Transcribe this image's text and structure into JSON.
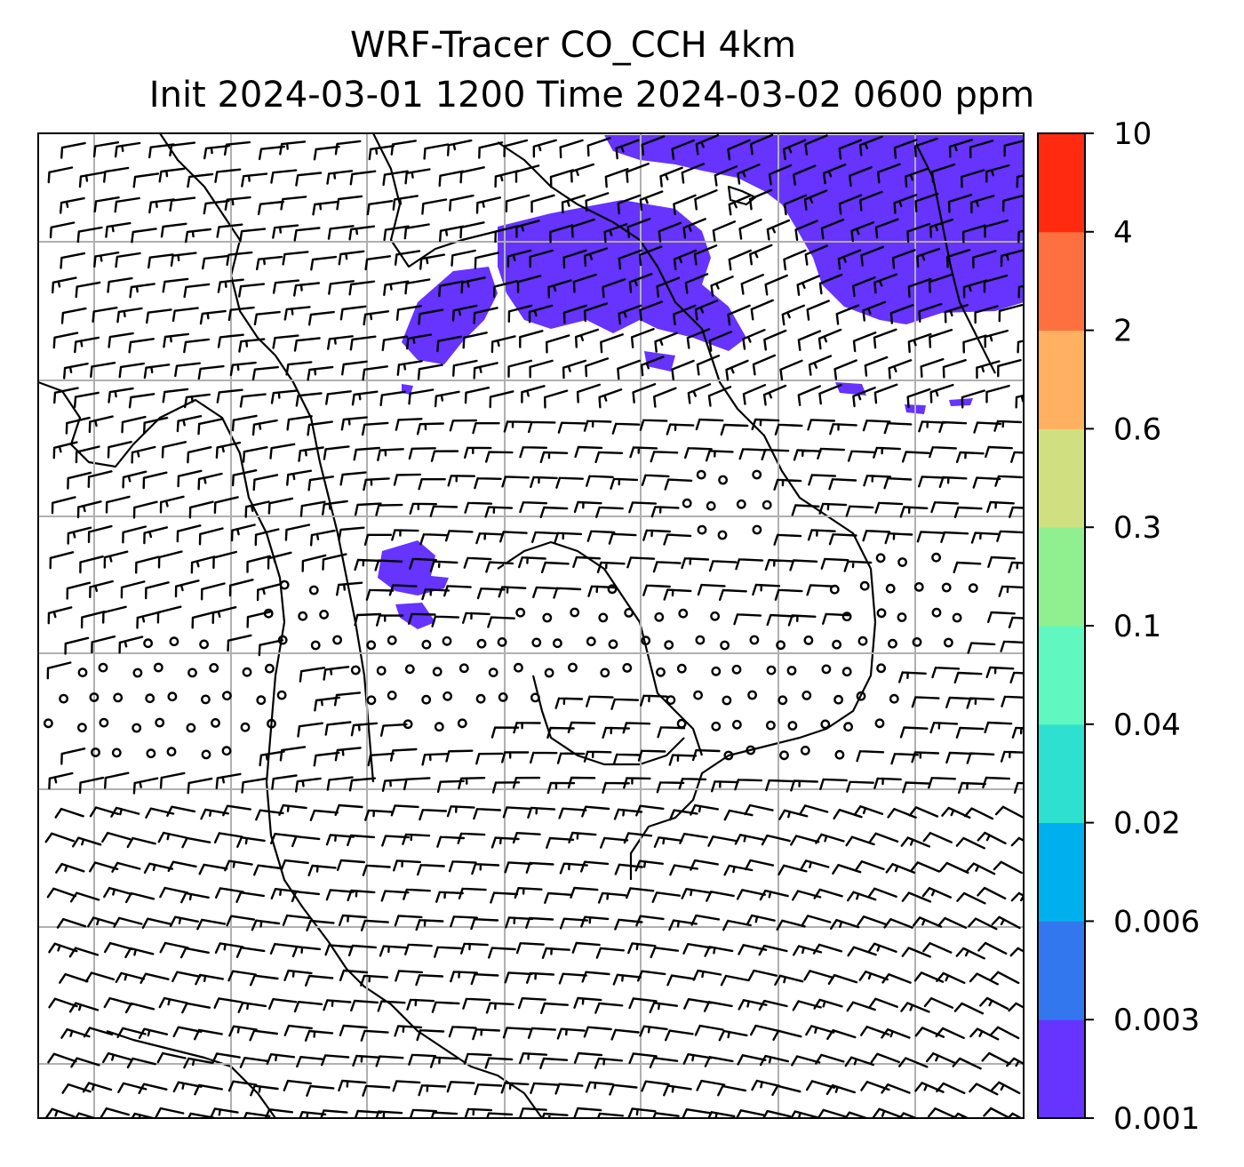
{
  "title": {
    "line1": "WRF-Tracer CO_CCH 4km",
    "line2": "Init 2024-03-01 1200 Time 2024-03-02 0600 ppm"
  },
  "colorbar": {
    "levels": [
      "0.001",
      "0.003",
      "0.006",
      "0.02",
      "0.04",
      "0.1",
      "0.3",
      "0.6",
      "2",
      "4",
      "10"
    ],
    "colors": [
      "#6633ff",
      "#3377ee",
      "#00b0ee",
      "#2ee0d0",
      "#60f8c0",
      "#90f090",
      "#d0e080",
      "#ffb060",
      "#ff7040",
      "#ff2a10"
    ]
  },
  "colors": {
    "tracer_fill": "#6633ff",
    "gridline": "#b0b0b0",
    "coastline": "#000000"
  }
}
